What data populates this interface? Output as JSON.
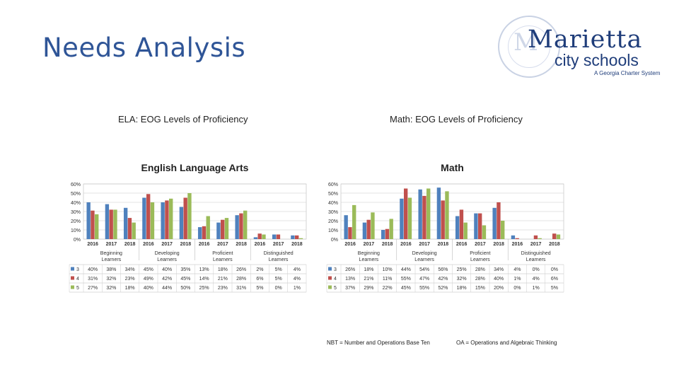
{
  "slide": {
    "title": "Needs Analysis",
    "logo": {
      "name": "Marietta",
      "sub": "city schools",
      "tagline": "A Georgia Charter System"
    },
    "ela_caption": "ELA: EOG Levels of Proficiency",
    "math_caption": "Math: EOG Levels of Proficiency",
    "footnotes": [
      "NBT = Number and Operations Base Ten",
      "OA = Operations and Algebraic Thinking"
    ]
  },
  "colors": {
    "title": "#2f5597",
    "grade3": "#4f81bd",
    "grade4": "#c0504d",
    "grade5": "#9bbb59"
  },
  "chart_data": [
    {
      "type": "bar",
      "title": "English Language Arts",
      "ylim": [
        0,
        60
      ],
      "yticks": [
        "0%",
        "10%",
        "20%",
        "30%",
        "40%",
        "50%",
        "60%"
      ],
      "years": [
        "2016",
        "2017",
        "2018"
      ],
      "groups": [
        "Beginning Learners",
        "Developing Learners",
        "Proficient Learners",
        "Distinguished Learners"
      ],
      "categories": [
        "2016",
        "2017",
        "2018",
        "2016",
        "2017",
        "2018",
        "2016",
        "2017",
        "2018",
        "2016",
        "2017",
        "2018"
      ],
      "series": [
        {
          "name": "3",
          "color": "#4f81bd",
          "values": [
            40,
            38,
            34,
            45,
            40,
            35,
            13,
            18,
            26,
            2,
            5,
            4
          ],
          "labels": [
            "40%",
            "38%",
            "34%",
            "45%",
            "40%",
            "35%",
            "13%",
            "18%",
            "26%",
            "2%",
            "5%",
            "4%"
          ]
        },
        {
          "name": "4",
          "color": "#c0504d",
          "values": [
            31,
            32,
            23,
            49,
            42,
            45,
            14,
            21,
            28,
            6,
            5,
            4
          ],
          "labels": [
            "31%",
            "32%",
            "23%",
            "49%",
            "42%",
            "45%",
            "14%",
            "21%",
            "28%",
            "6%",
            "5%",
            "4%"
          ]
        },
        {
          "name": "5",
          "color": "#9bbb59",
          "values": [
            27,
            32,
            18,
            40,
            44,
            50,
            25,
            23,
            31,
            5,
            0,
            1
          ],
          "labels": [
            "27%",
            "32%",
            "18%",
            "40%",
            "44%",
            "50%",
            "25%",
            "23%",
            "31%",
            "5%",
            "0%",
            "1%"
          ]
        }
      ],
      "grid": true,
      "legend": "table-below"
    },
    {
      "type": "bar",
      "title": "Math",
      "ylim": [
        0,
        60
      ],
      "yticks": [
        "0%",
        "10%",
        "20%",
        "30%",
        "40%",
        "50%",
        "60%"
      ],
      "years": [
        "2016",
        "2017",
        "2018"
      ],
      "groups": [
        "Beginning Learners",
        "Developing Learners",
        "Proficient Learners",
        "Distinguished Learners"
      ],
      "categories": [
        "2016",
        "2017",
        "2018",
        "2016",
        "2017",
        "2018",
        "2016",
        "2017",
        "2018",
        "2016",
        "2017",
        "2018"
      ],
      "series": [
        {
          "name": "3",
          "color": "#4f81bd",
          "values": [
            26,
            18,
            10,
            44,
            54,
            56,
            25,
            28,
            34,
            4,
            0,
            0
          ],
          "labels": [
            "26%",
            "18%",
            "10%",
            "44%",
            "54%",
            "56%",
            "25%",
            "28%",
            "34%",
            "4%",
            "0%",
            "0%"
          ]
        },
        {
          "name": "4",
          "color": "#c0504d",
          "values": [
            13,
            21,
            11,
            55,
            47,
            42,
            32,
            28,
            40,
            1,
            4,
            6
          ],
          "labels": [
            "13%",
            "21%",
            "11%",
            "55%",
            "47%",
            "42%",
            "32%",
            "28%",
            "40%",
            "1%",
            "4%",
            "6%"
          ]
        },
        {
          "name": "5",
          "color": "#9bbb59",
          "values": [
            37,
            29,
            22,
            45,
            55,
            52,
            18,
            15,
            20,
            0,
            1,
            5
          ],
          "labels": [
            "37%",
            "29%",
            "22%",
            "45%",
            "55%",
            "52%",
            "18%",
            "15%",
            "20%",
            "0%",
            "1%",
            "5%"
          ]
        }
      ],
      "grid": true,
      "legend": "table-below"
    }
  ]
}
